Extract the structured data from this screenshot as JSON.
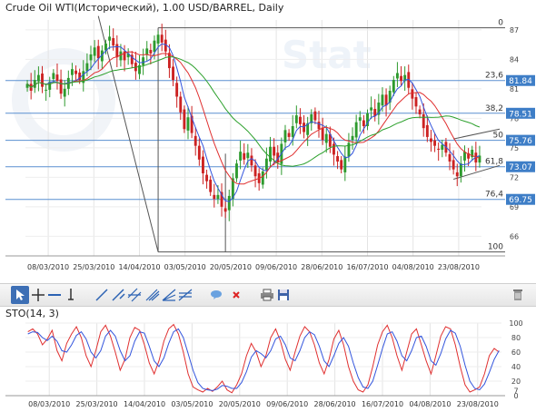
{
  "chart_data": [
    {
      "type": "candlestick",
      "title": "Crude Oil WTI(Исторический), 1.00 USD/BARREL, Daily",
      "ylim": [
        64,
        88
      ],
      "y_ticks": [
        66,
        69,
        72,
        75,
        78,
        81,
        84,
        87
      ],
      "x_ticks": [
        "08/03/2010",
        "25/03/2010",
        "14/04/2010",
        "03/05/2010",
        "20/05/2010",
        "09/06/2010",
        "28/06/2010",
        "16/07/2010",
        "04/08/2010",
        "23/08/2010"
      ],
      "close_approx": [
        81.5,
        80.8,
        81.9,
        82.4,
        81.2,
        80.9,
        81.7,
        82.6,
        81.8,
        80.5,
        81.0,
        82.1,
        83.0,
        82.5,
        81.9,
        82.8,
        83.6,
        84.5,
        85.2,
        84.1,
        84.9,
        85.6,
        86.3,
        85.4,
        84.2,
        84.8,
        83.9,
        84.6,
        83.5,
        82.8,
        83.4,
        84.2,
        85.1,
        84.6,
        85.9,
        86.5,
        85.7,
        84.8,
        83.1,
        81.9,
        80.2,
        78.6,
        76.9,
        78.1,
        76.5,
        75.2,
        73.8,
        72.4,
        71.6,
        70.5,
        69.8,
        70.2,
        69.0,
        68.5,
        70.1,
        71.9,
        73.4,
        74.6,
        73.8,
        74.5,
        73.2,
        72.1,
        71.4,
        72.6,
        73.9,
        75.1,
        74.2,
        73.5,
        75.4,
        76.8,
        76.1,
        77.2,
        78.3,
        77.4,
        76.6,
        77.5,
        78.4,
        77.8,
        76.9,
        75.8,
        76.4,
        75.1,
        74.3,
        73.6,
        72.8,
        74.1,
        75.5,
        76.2,
        77.6,
        78.1,
        77.2,
        78.5,
        79.1,
        78.2,
        79.6,
        80.4,
        79.3,
        80.8,
        81.9,
        82.6,
        81.8,
        82.4,
        81.1,
        80.0,
        79.2,
        78.4,
        77.0,
        76.1,
        75.6,
        75.2,
        74.8,
        75.3,
        74.5,
        73.6,
        72.8,
        72.1,
        73.4,
        74.6,
        73.9,
        74.8,
        73.5,
        74.2
      ],
      "series": [
        {
          "name": "",
          "color": "#3355dd",
          "kind": "moving-average-fast"
        },
        {
          "name": "",
          "color": "#e03030",
          "kind": "moving-average-mid"
        },
        {
          "name": "",
          "color": "#2ca02c",
          "kind": "moving-average-slow"
        }
      ],
      "fibonacci": {
        "levels": [
          {
            "label": "0",
            "value": 87.2
          },
          {
            "label": "23,6",
            "value": 81.84
          },
          {
            "label": "38,2",
            "value": 78.51
          },
          {
            "label": "50",
            "value": 75.76
          },
          {
            "label": "61,8",
            "value": 73.07
          },
          {
            "label": "76,4",
            "value": 69.75
          },
          {
            "label": "100",
            "value": 64.4
          }
        ],
        "badges": [
          "81.84",
          "78.51",
          "75.76",
          "73.07",
          "69.75"
        ]
      },
      "colors": {
        "up": "#2e9a2e",
        "down": "#cc2222",
        "fib_line": "#5a8fd0",
        "badge": "#3e7ec7"
      }
    },
    {
      "type": "line",
      "title": "STO(14, 3)",
      "ylim": [
        0,
        100
      ],
      "y_ticks": [
        0,
        7,
        20,
        40,
        60,
        80,
        100
      ],
      "x_ticks": [
        "08/03/2010",
        "25/03/2010",
        "14/04/2010",
        "03/05/2010",
        "20/05/2010",
        "09/06/2010",
        "28/06/2010",
        "16/07/2010",
        "04/08/2010",
        "23/08/2010"
      ],
      "series": [
        {
          "name": "",
          "color": "#e03030",
          "values": [
            88,
            92,
            85,
            70,
            78,
            90,
            62,
            48,
            72,
            85,
            95,
            80,
            55,
            40,
            62,
            88,
            97,
            82,
            60,
            35,
            50,
            80,
            94,
            90,
            70,
            45,
            30,
            48,
            75,
            92,
            98,
            85,
            60,
            30,
            12,
            8,
            5,
            10,
            6,
            12,
            20,
            8,
            4,
            15,
            30,
            55,
            72,
            60,
            40,
            55,
            80,
            92,
            75,
            50,
            35,
            60,
            82,
            95,
            88,
            70,
            45,
            30,
            50,
            78,
            90,
            70,
            40,
            20,
            8,
            5,
            15,
            40,
            70,
            88,
            97,
            80,
            55,
            35,
            60,
            85,
            92,
            70,
            48,
            30,
            55,
            82,
            95,
            92,
            70,
            40,
            15,
            5,
            8,
            12,
            30,
            55,
            65,
            60
          ]
        },
        {
          "name": "",
          "color": "#3355dd",
          "values": [
            85,
            88,
            87,
            80,
            76,
            82,
            75,
            62,
            60,
            70,
            83,
            88,
            78,
            60,
            52,
            62,
            82,
            90,
            82,
            62,
            48,
            55,
            75,
            88,
            86,
            68,
            48,
            40,
            52,
            72,
            88,
            92,
            80,
            58,
            35,
            18,
            10,
            8,
            7,
            9,
            14,
            13,
            10,
            10,
            18,
            33,
            53,
            62,
            58,
            52,
            62,
            78,
            82,
            70,
            52,
            48,
            62,
            80,
            88,
            84,
            68,
            48,
            40,
            55,
            72,
            80,
            68,
            45,
            25,
            12,
            10,
            20,
            42,
            65,
            85,
            88,
            75,
            55,
            48,
            62,
            80,
            82,
            68,
            48,
            42,
            58,
            78,
            90,
            86,
            68,
            42,
            20,
            10,
            8,
            16,
            32,
            50,
            62
          ]
        }
      ]
    }
  ]
}
